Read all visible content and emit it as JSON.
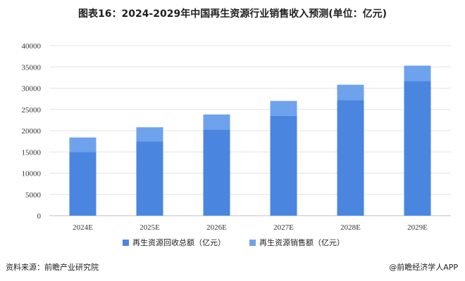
{
  "title": "图表16：2024-2029年中国再生资源行业销售收入预测(单位：亿元)",
  "source": "资料来源：前瞻产业研究院",
  "brand": "@前瞻经济学人APP",
  "chart_data": {
    "type": "bar",
    "stacked": true,
    "categories": [
      "2024E",
      "2025E",
      "2026E",
      "2027E",
      "2028E",
      "2029E"
    ],
    "series": [
      {
        "name": "再生资源回收总额（亿元）",
        "values": [
          15000,
          17500,
          20300,
          23500,
          27200,
          31700
        ],
        "color": "#4a86e0"
      },
      {
        "name": "再生资源销售额（亿元）",
        "values": [
          3400,
          3300,
          3500,
          3500,
          3600,
          3600
        ],
        "color": "#6fa2ec"
      }
    ],
    "totals": [
      18400,
      20800,
      23800,
      27000,
      30800,
      35300
    ],
    "ylim": [
      0,
      40000
    ],
    "yticks": [
      "0",
      "5000",
      "10000",
      "15000",
      "20000",
      "25000",
      "30000",
      "35000",
      "40000"
    ],
    "grid": true,
    "legend_position": "bottom"
  }
}
